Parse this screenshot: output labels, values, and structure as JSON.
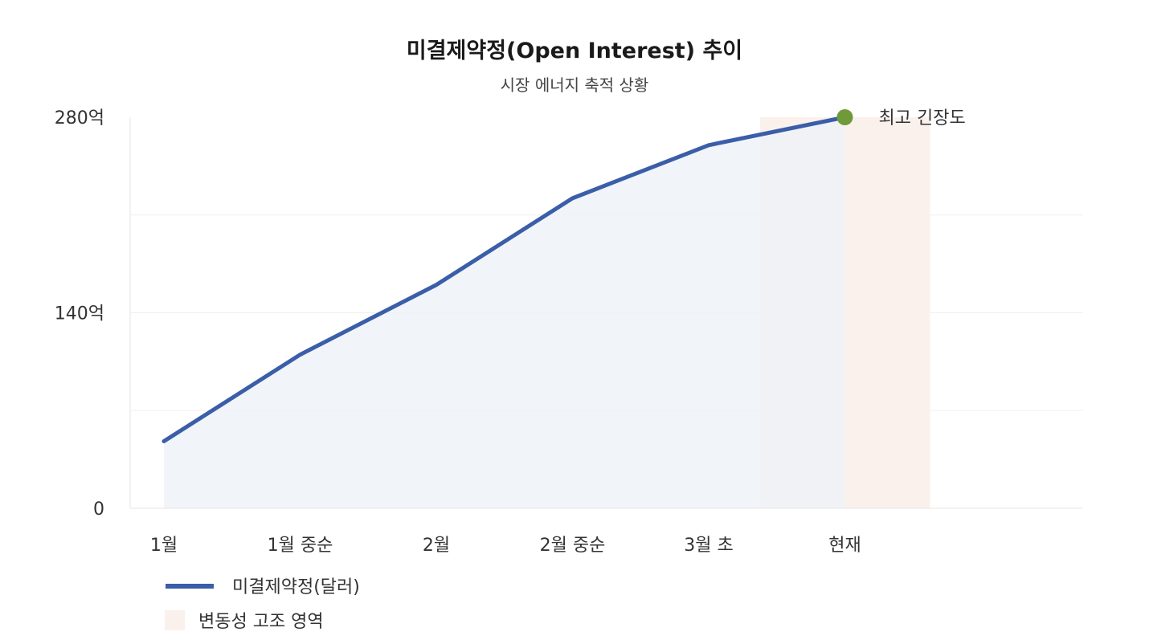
{
  "chart_data": {
    "type": "area",
    "title": "미결제약정(Open Interest) 추이",
    "subtitle": "시장 에너지 축적 상황",
    "categories": [
      "1월",
      "1월 중순",
      "2월",
      "2월 중순",
      "3월 초",
      "현재"
    ],
    "series": [
      {
        "name": "미결제약정(달러)",
        "color": "#3a5ea8",
        "fill": "#eef2f8",
        "values": [
          48,
          110,
          160,
          222,
          260,
          280
        ]
      }
    ],
    "y_ticks": [
      {
        "value": 0,
        "label": "0"
      },
      {
        "value": 140,
        "label": "140억"
      },
      {
        "value": 280,
        "label": "280억"
      }
    ],
    "ylim": [
      0,
      280
    ],
    "highlight_region": {
      "label": "변동성 고조 영역",
      "from_category": "3월 초",
      "to_category": "현재",
      "color": "#fbf1ec"
    },
    "annotation": {
      "text": "최고 긴장도",
      "at_category": "현재",
      "value": 280,
      "marker_color": "#6e9a3a"
    },
    "legend": [
      {
        "label": "미결제약정(달러)",
        "kind": "line",
        "color": "#3a5ea8"
      },
      {
        "label": "변동성 고조 영역",
        "kind": "box",
        "color": "#fbf1ec"
      }
    ],
    "legend_position": "bottom-left",
    "grid": true
  }
}
